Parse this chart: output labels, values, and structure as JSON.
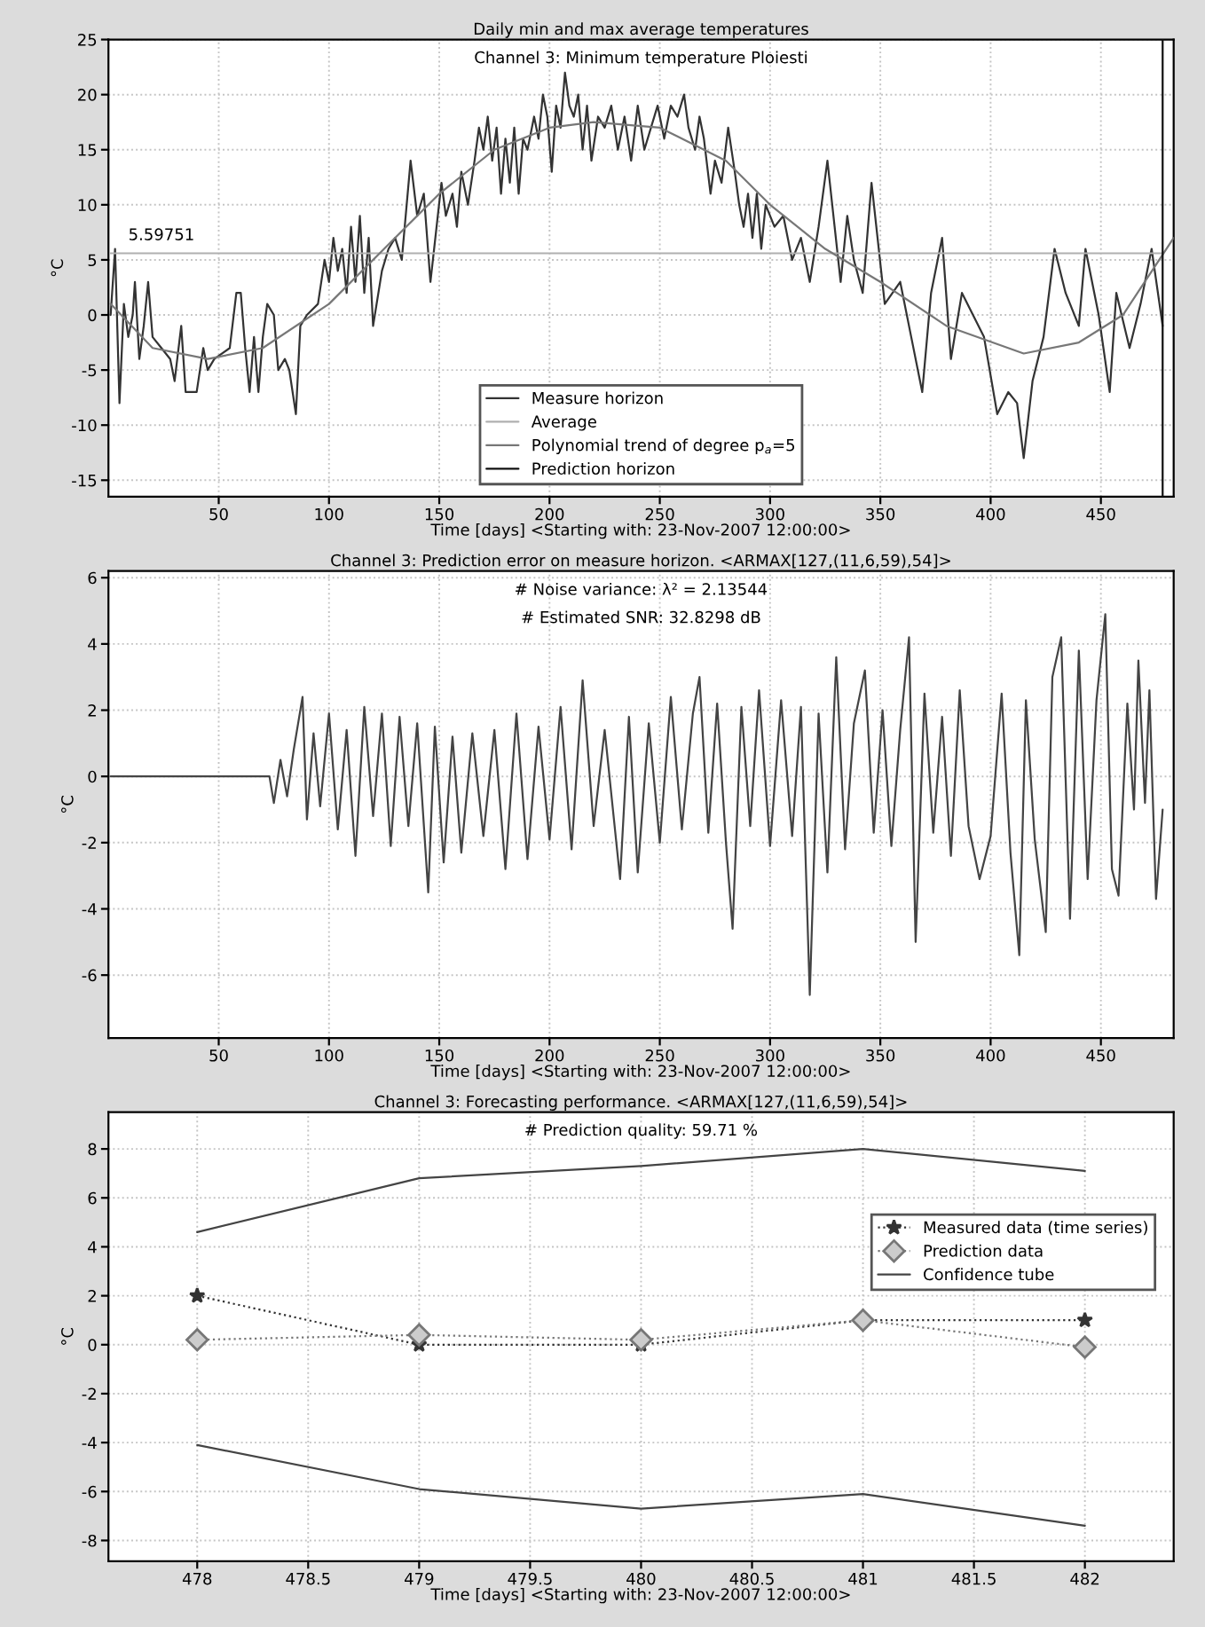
{
  "chart_data": [
    {
      "type": "line",
      "title": "Daily min and max average temperatures",
      "subtitle": "Channel 3: Minimum temperature Ploiesti",
      "xlabel": "Time [days] <Starting with: 23-Nov-2007 12:00:00>",
      "ylabel": "°C",
      "xlim": [
        0,
        483
      ],
      "ylim": [
        -16.5,
        25
      ],
      "xticks": [
        50,
        100,
        150,
        200,
        250,
        300,
        350,
        400,
        450
      ],
      "yticks": [
        -15,
        -10,
        -5,
        0,
        5,
        10,
        15,
        20,
        25
      ],
      "grid": true,
      "legend": "bottom",
      "annotations": [
        {
          "text": "5.59751",
          "x": 9,
          "y": 5.59751
        }
      ],
      "series": [
        {
          "name": "Measure horizon",
          "color": "#333333",
          "line_style": "solid",
          "x": [
            1,
            3,
            5,
            7,
            9,
            11,
            12,
            14,
            16,
            18,
            20,
            24,
            28,
            30,
            33,
            35,
            40,
            43,
            45,
            48,
            55,
            58,
            60,
            62,
            64,
            66,
            68,
            70,
            72,
            75,
            77,
            80,
            82,
            85,
            87,
            90,
            95,
            98,
            100,
            102,
            104,
            106,
            108,
            110,
            112,
            114,
            116,
            118,
            120,
            124,
            127,
            130,
            133,
            137,
            140,
            143,
            146,
            151,
            153,
            156,
            158,
            160,
            163,
            166,
            168,
            170,
            172,
            174,
            176,
            178,
            180,
            182,
            184,
            186,
            188,
            190,
            193,
            195,
            197,
            199,
            201,
            203,
            205,
            207,
            209,
            211,
            213,
            215,
            217,
            219,
            222,
            225,
            228,
            231,
            234,
            237,
            240,
            243,
            246,
            249,
            252,
            255,
            258,
            261,
            263,
            266,
            268,
            270,
            273,
            275,
            278,
            281,
            284,
            286,
            288,
            290,
            292,
            294,
            296,
            298,
            302,
            306,
            310,
            314,
            318,
            322,
            326,
            332,
            335,
            338,
            342,
            346,
            352,
            359,
            364,
            369,
            373,
            378,
            382,
            387,
            392,
            397,
            403,
            408,
            412,
            415,
            419,
            424,
            429,
            434,
            440,
            443,
            449,
            454,
            457,
            463,
            468,
            473,
            478
          ],
          "values": [
            0,
            6,
            -8,
            1,
            -2,
            0,
            3,
            -4,
            -1,
            3,
            -2,
            -3,
            -4,
            -6,
            -1,
            -7,
            -7,
            -3,
            -5,
            -4,
            -3,
            2,
            2,
            -3,
            -7,
            -2,
            -7,
            -2,
            1,
            0,
            -5,
            -4,
            -5,
            -9,
            -1,
            0,
            1,
            5,
            3,
            7,
            4,
            6,
            2,
            8,
            3,
            9,
            2,
            7,
            -1,
            4,
            6,
            7,
            5,
            14,
            9,
            11,
            3,
            12,
            9,
            11,
            8,
            13,
            10,
            14,
            17,
            15,
            18,
            14,
            17,
            11,
            16,
            12,
            17,
            11,
            16,
            15,
            18,
            16,
            20,
            18,
            13,
            19,
            17,
            22,
            19,
            18,
            20,
            15,
            19,
            14,
            18,
            17,
            19,
            15,
            18,
            14,
            19,
            15,
            17,
            19,
            16,
            19,
            18,
            20,
            17,
            15,
            18,
            16,
            11,
            14,
            12,
            17,
            13,
            10,
            8,
            11,
            7,
            11,
            6,
            10,
            8,
            9,
            5,
            7,
            3,
            8,
            14,
            3,
            9,
            5,
            2,
            12,
            1,
            3,
            -2,
            -7,
            2,
            7,
            -4,
            2,
            0,
            -2,
            -9,
            -7,
            -8,
            -13,
            -6,
            -2,
            6,
            2,
            -1,
            6,
            0,
            -7,
            2,
            -3,
            1,
            6,
            -1
          ]
        },
        {
          "name": "Average",
          "color": "#b0b0b0",
          "line_style": "solid",
          "x": [
            1,
            478
          ],
          "values": [
            5.59751,
            5.59751
          ]
        },
        {
          "name": "Polynomial trend of degree p$_{a}$=5",
          "color": "#777777",
          "line_style": "solid",
          "x": [
            1,
            20,
            45,
            70,
            100,
            125,
            150,
            175,
            200,
            220,
            250,
            280,
            300,
            325,
            350,
            380,
            415,
            440,
            460,
            483
          ],
          "values": [
            1,
            -3,
            -4,
            -3,
            1,
            6,
            11,
            15,
            17,
            17.5,
            17,
            14,
            10,
            6,
            3,
            -1,
            -3.5,
            -2.5,
            0,
            7
          ]
        },
        {
          "name": "Prediction horizon",
          "color": "#111111",
          "line_style": "solid",
          "x": [
            478,
            478
          ],
          "values": [
            -16.5,
            25
          ]
        }
      ]
    },
    {
      "type": "line",
      "title": "Channel 3: Prediction error on measure horizon. <ARMAX[127,(11,6,59),54]>",
      "xlabel": "Time [days] <Starting with: 23-Nov-2007 12:00:00>",
      "ylabel": "°C",
      "xlim": [
        0,
        483
      ],
      "ylim": [
        -7.9,
        6.2
      ],
      "xticks": [
        50,
        100,
        150,
        200,
        250,
        300,
        350,
        400,
        450
      ],
      "yticks": [
        -6,
        -4,
        -2,
        0,
        2,
        4,
        6
      ],
      "grid": true,
      "annotations": [
        "# Noise variance: λ² = 2.13544",
        "# Estimated SNR: 32.8298 dB"
      ],
      "series": [
        {
          "color": "#444444",
          "line_style": "solid",
          "x": [
            1,
            73,
            75,
            78,
            81,
            84,
            88,
            90,
            93,
            96,
            100,
            104,
            108,
            112,
            116,
            120,
            124,
            128,
            132,
            136,
            140,
            145,
            148,
            152,
            156,
            160,
            165,
            170,
            175,
            180,
            185,
            190,
            195,
            200,
            205,
            210,
            215,
            220,
            225,
            232,
            236,
            240,
            245,
            250,
            255,
            260,
            265,
            268,
            272,
            276,
            280,
            283,
            287,
            291,
            295,
            300,
            305,
            310,
            314,
            318,
            322,
            326,
            330,
            334,
            338,
            343,
            347,
            351,
            355,
            359,
            363,
            366,
            370,
            374,
            378,
            382,
            386,
            390,
            395,
            400,
            405,
            409,
            413,
            416,
            420,
            425,
            428,
            432,
            436,
            440,
            444,
            448,
            452,
            455,
            458,
            462,
            465,
            467,
            470,
            472,
            475,
            478
          ],
          "values": [
            0,
            0,
            -0.8,
            0.5,
            -0.6,
            0.8,
            2.4,
            -1.3,
            1.3,
            -0.9,
            1.9,
            -1.6,
            1.4,
            -2.4,
            2.1,
            -1.2,
            1.9,
            -2.1,
            1.8,
            -1.5,
            1.6,
            -3.5,
            1.5,
            -2.6,
            1.2,
            -2.3,
            1.3,
            -1.8,
            1.4,
            -2.8,
            1.9,
            -2.5,
            1.5,
            -1.9,
            2.1,
            -2.2,
            2.9,
            -1.5,
            1.4,
            -3.1,
            1.8,
            -2.9,
            1.6,
            -2.0,
            2.4,
            -1.6,
            1.9,
            3.0,
            -1.7,
            2.2,
            -2.0,
            -4.6,
            2.1,
            -1.5,
            2.6,
            -2.1,
            2.3,
            -1.8,
            2.1,
            -6.6,
            1.9,
            -2.9,
            3.6,
            -2.2,
            1.6,
            3.2,
            -1.7,
            2.0,
            -2.1,
            1.4,
            4.2,
            -5.0,
            2.5,
            -1.7,
            1.8,
            -2.4,
            2.6,
            -1.5,
            -3.1,
            -1.8,
            2.5,
            -2.3,
            -5.4,
            2.3,
            -1.9,
            -4.7,
            3.0,
            4.2,
            -4.3,
            3.8,
            -3.1,
            2.3,
            4.9,
            -2.8,
            -3.6,
            2.2,
            -1.0,
            3.5,
            -0.8,
            2.6,
            -3.7,
            -1.0
          ]
        }
      ]
    },
    {
      "type": "line",
      "title": "Channel 3: Forecasting performance. <ARMAX[127,(11,6,59),54]>",
      "xlabel": "Time [days] <Starting with: 23-Nov-2007 12:00:00>",
      "ylabel": "°C",
      "xlim": [
        477.6,
        482.4
      ],
      "ylim": [
        -8.85,
        9.5
      ],
      "xticks": [
        478,
        478.5,
        479,
        479.5,
        480,
        480.5,
        481,
        481.5,
        482
      ],
      "yticks": [
        -8,
        -6,
        -4,
        -2,
        0,
        2,
        4,
        6,
        8
      ],
      "grid": true,
      "legend": "top right",
      "annotations": [
        "# Prediction quality: 59.71 %"
      ],
      "series": [
        {
          "name": "Measured data (time series)",
          "color": "#333333",
          "marker": "star",
          "line_style": "dotted",
          "x": [
            478,
            479,
            480,
            481,
            482
          ],
          "values": [
            2,
            0,
            0,
            1,
            1
          ]
        },
        {
          "name": "Prediction data",
          "color": "#777777",
          "marker": "diamond",
          "line_style": "dotted",
          "x": [
            478,
            479,
            480,
            481,
            482
          ],
          "values": [
            0.2,
            0.4,
            0.2,
            1,
            -0.1
          ]
        },
        {
          "name": "Confidence tube",
          "color": "#444444",
          "line_style": "solid",
          "x": [
            478,
            479,
            480,
            481,
            482
          ],
          "values": [
            4.6,
            6.8,
            7.3,
            8.0,
            7.1
          ]
        },
        {
          "color": "#444444",
          "line_style": "solid",
          "x": [
            478,
            479,
            480,
            481,
            482
          ],
          "values": [
            -4.1,
            -5.9,
            -6.7,
            -6.1,
            -7.4
          ]
        }
      ]
    }
  ]
}
